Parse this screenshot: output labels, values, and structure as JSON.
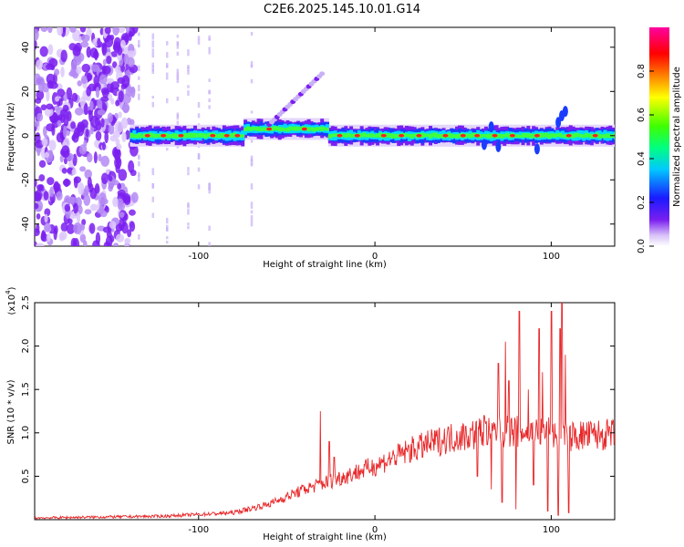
{
  "title": "C2E6.2025.145.10.01.G14",
  "chart_data": [
    {
      "type": "heatmap",
      "xlabel": "Height of straight line (km)",
      "ylabel": "Frequency (Hz)",
      "xlim": [
        -193,
        136
      ],
      "ylim": [
        -50,
        49
      ],
      "x_ticks": [
        -100,
        0,
        100
      ],
      "y_ticks": [
        -40,
        -20,
        0,
        20,
        40
      ],
      "colorbar": {
        "label": "Normalized spectral amplitude",
        "ticks": [
          "0.0",
          "0.2",
          "0.4",
          "0.6",
          "0.8"
        ],
        "colors": [
          "#ffffff",
          "#7a1ff0",
          "#1a1aff",
          "#00ffff",
          "#00ff00",
          "#ffff00",
          "#ff8000",
          "#ff0000",
          "#ff00a0"
        ]
      },
      "ridge": {
        "frequency_hz": 0,
        "start_km": -139,
        "end_km": 136,
        "bump": {
          "from_km": -75,
          "to_km": -28,
          "frequency_hz": 3
        },
        "diagonal": {
          "from_km": -60,
          "to_km": -30,
          "from_hz": 5,
          "to_hz": 28
        },
        "hotspots_km": [
          -129,
          -120,
          -110,
          -92,
          -84,
          -78,
          -60,
          -40,
          -20,
          -10,
          5,
          15,
          25,
          40,
          50,
          58,
          68,
          78,
          92,
          110,
          125
        ],
        "noise_region_km": [
          -193,
          -140
        ]
      }
    },
    {
      "type": "line",
      "xlabel": "Height of straight line (km)",
      "ylabel": "SNR (10 * v/v)",
      "multiplier": "(x10",
      "multiplier_exp": "4",
      "xlim": [
        -193,
        136
      ],
      "ylim": [
        0,
        2.5
      ],
      "x_ticks": [
        -100,
        0,
        100
      ],
      "y_ticks": [
        0.5,
        1.0,
        1.5,
        2.0,
        2.5
      ],
      "color": "#e8282a",
      "envelope": {
        "x": [
          -193,
          -120,
          -80,
          -60,
          -40,
          -20,
          0,
          20,
          40,
          60,
          80,
          100,
          110,
          136
        ],
        "y": [
          0.02,
          0.04,
          0.08,
          0.18,
          0.35,
          0.48,
          0.62,
          0.8,
          0.93,
          1.0,
          1.02,
          1.0,
          0.96,
          0.98
        ]
      },
      "spikes": [
        {
          "x": -31,
          "y": 1.25
        },
        {
          "x": -26,
          "y": 0.9
        },
        {
          "x": -23,
          "y": 0.72
        },
        {
          "x": 58,
          "y": 1.45
        },
        {
          "x": 62,
          "y": 1.2
        },
        {
          "x": 70,
          "y": 1.8
        },
        {
          "x": 74,
          "y": 2.05
        },
        {
          "x": 76,
          "y": 1.6
        },
        {
          "x": 82,
          "y": 2.4
        },
        {
          "x": 87,
          "y": 1.5
        },
        {
          "x": 93,
          "y": 2.2
        },
        {
          "x": 95,
          "y": 1.7
        },
        {
          "x": 100,
          "y": 2.4
        },
        {
          "x": 105,
          "y": 2.2
        },
        {
          "x": 106,
          "y": 2.5
        },
        {
          "x": 108,
          "y": 1.9
        }
      ],
      "dips": [
        {
          "x": 58,
          "y": 0.5
        },
        {
          "x": 66,
          "y": 0.35
        },
        {
          "x": 72,
          "y": 0.2
        },
        {
          "x": 80,
          "y": 0.12
        },
        {
          "x": 90,
          "y": 0.4
        },
        {
          "x": 98,
          "y": 0.1
        },
        {
          "x": 104,
          "y": 0.05
        },
        {
          "x": 110,
          "y": 0.08
        }
      ]
    }
  ]
}
